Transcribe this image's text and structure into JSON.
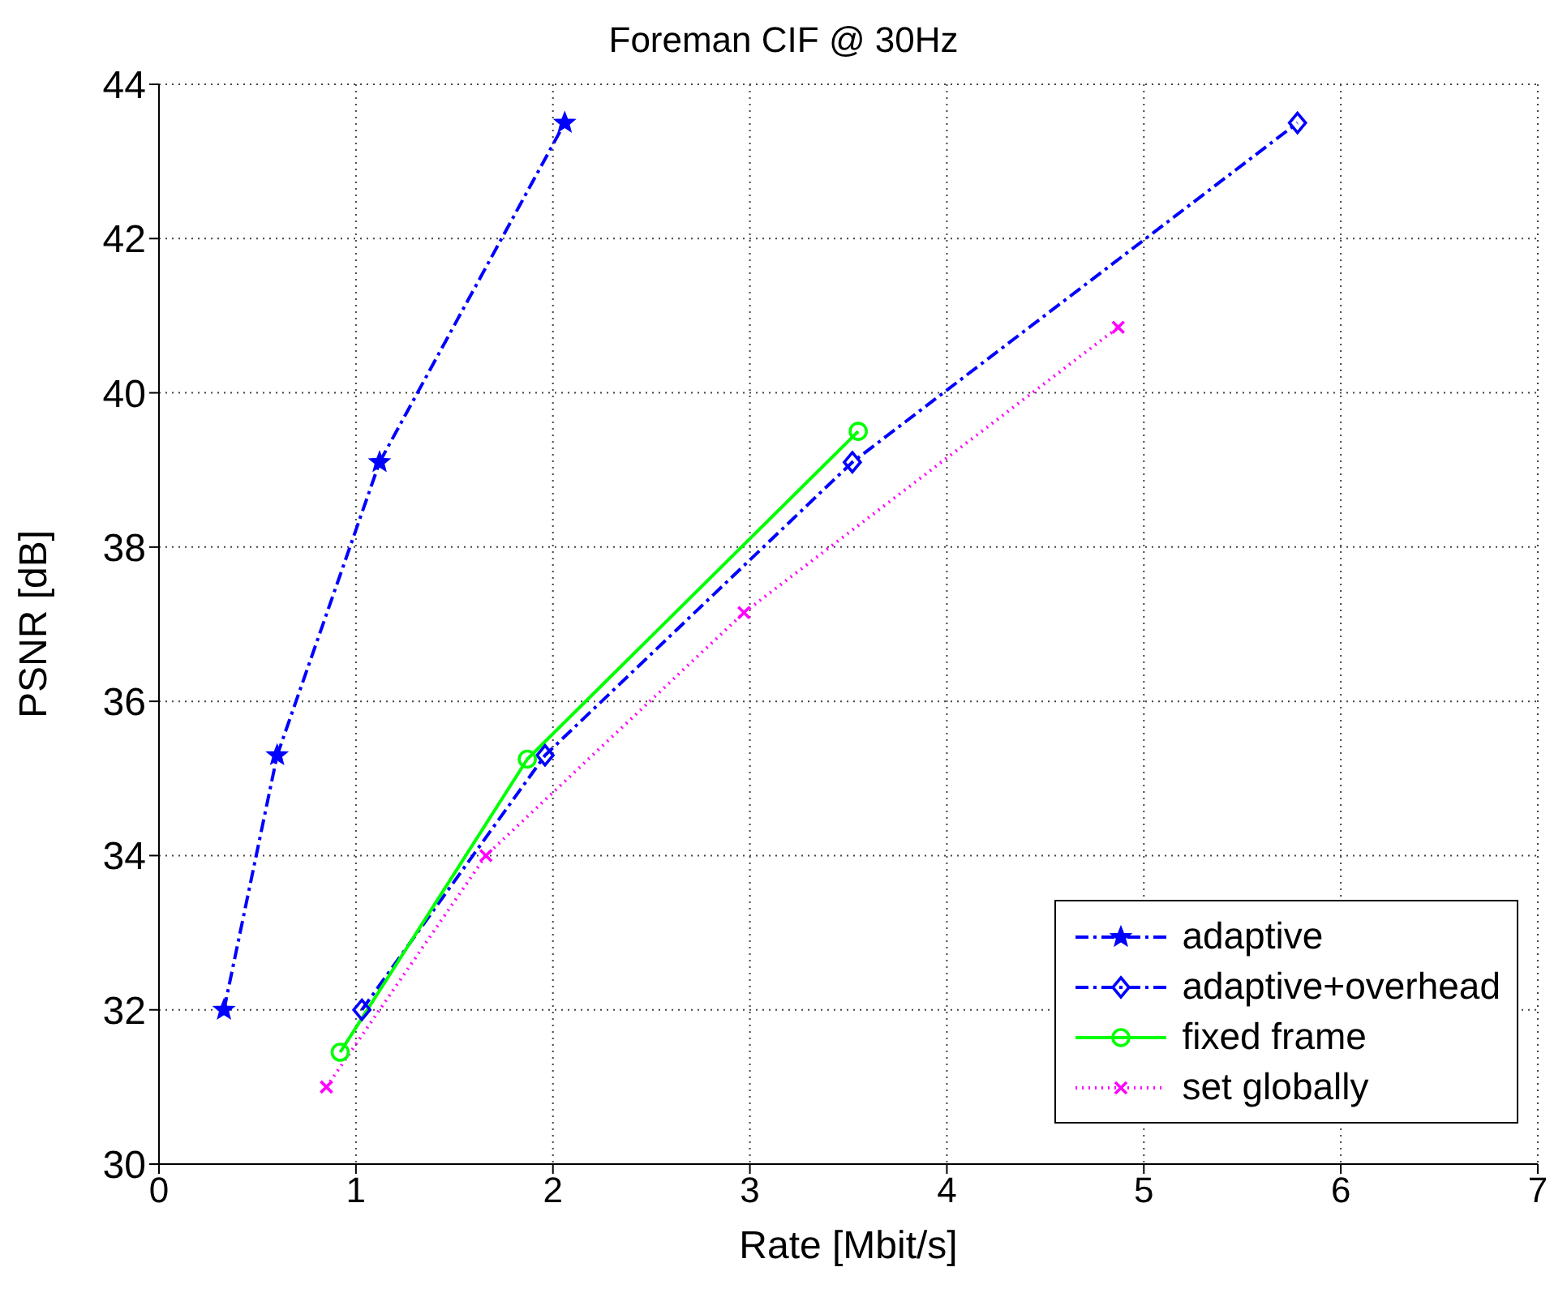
{
  "chart_data": {
    "type": "line",
    "title": "Foreman CIF @ 30Hz",
    "xlabel": "Rate [Mbit/s]",
    "ylabel": "PSNR [dB]",
    "xlim": [
      0,
      7
    ],
    "xticks": [
      0,
      1,
      2,
      3,
      4,
      5,
      6,
      7
    ],
    "ylim": [
      30,
      44
    ],
    "yticks": [
      30,
      32,
      34,
      36,
      38,
      40,
      42,
      44
    ],
    "grid": true,
    "legend": "bottom right",
    "series": [
      {
        "name": "adaptive",
        "color": "#0000ff",
        "marker": "star",
        "line_style": "dashed",
        "x": [
          0.33,
          0.6,
          1.12,
          2.06
        ],
        "values": [
          32.0,
          35.3,
          39.1,
          43.5
        ]
      },
      {
        "name": "adaptive+overhead",
        "color": "#0000ff",
        "marker": "diamond",
        "line_style": "dashed",
        "x": [
          1.03,
          1.96,
          3.52,
          5.78
        ],
        "values": [
          32.0,
          35.3,
          39.1,
          43.5
        ]
      },
      {
        "name": "fixed frame",
        "color": "#00ff00",
        "marker": "circle",
        "line_style": "solid",
        "x": [
          0.92,
          1.87,
          3.55
        ],
        "values": [
          31.45,
          35.25,
          39.5
        ]
      },
      {
        "name": "set globally",
        "color": "#ff00ff",
        "marker": "cross",
        "line_style": "dotted",
        "x": [
          0.85,
          1.66,
          2.97,
          4.87
        ],
        "values": [
          31.0,
          34.0,
          37.15,
          40.85
        ]
      }
    ]
  }
}
